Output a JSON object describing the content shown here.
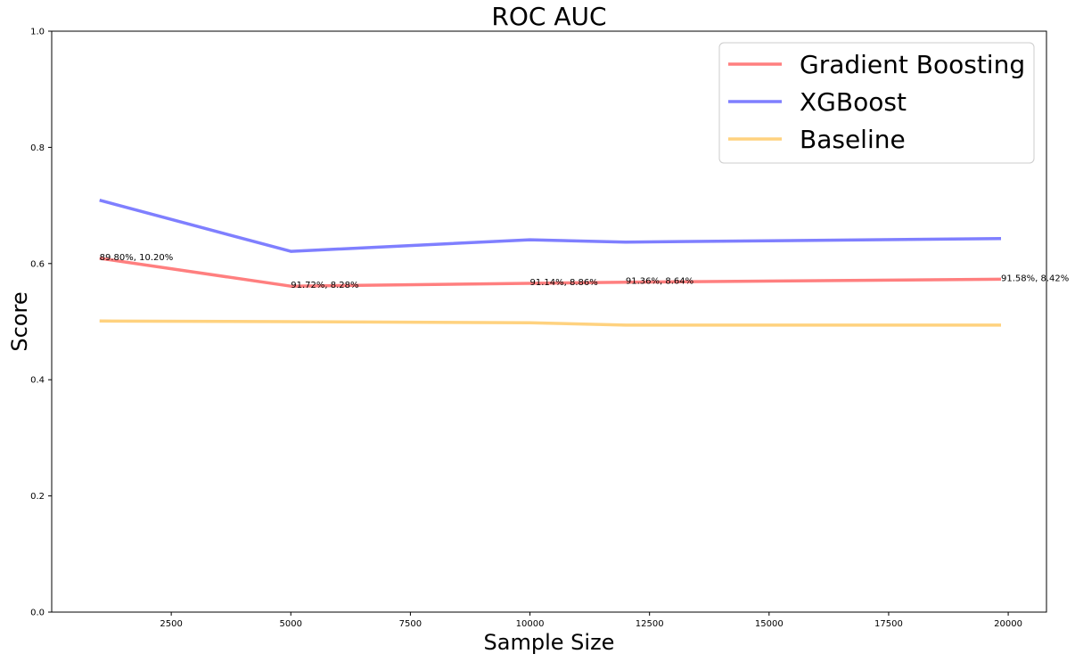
{
  "chart_data": {
    "type": "line",
    "title": "ROC AUC",
    "xlabel": "Sample Size",
    "ylabel": "Score",
    "xlim": [
      0,
      20800
    ],
    "ylim": [
      0.0,
      1.0
    ],
    "x_ticks": [
      2500,
      5000,
      7500,
      10000,
      12500,
      15000,
      17500,
      20000
    ],
    "x_tick_labels": [
      "2500",
      "5000",
      "7500",
      "10000",
      "12500",
      "15000",
      "17500",
      "20000"
    ],
    "y_ticks": [
      0.0,
      0.2,
      0.4,
      0.6,
      0.8,
      1.0
    ],
    "y_tick_labels": [
      "0.0",
      "0.2",
      "0.4",
      "0.6",
      "0.8",
      "1.0"
    ],
    "grid": false,
    "legend_position": "top-right",
    "x": [
      1000,
      5000,
      10000,
      12000,
      19850
    ],
    "series": [
      {
        "name": "Gradient Boosting",
        "color": "#ff7f7f",
        "values": [
          0.609,
          0.561,
          0.566,
          0.568,
          0.573
        ]
      },
      {
        "name": "XGBoost",
        "color": "#7f7fff",
        "values": [
          0.709,
          0.621,
          0.641,
          0.637,
          0.643
        ]
      },
      {
        "name": "Baseline",
        "color": "#ffd27f",
        "values": [
          0.501,
          0.5,
          0.498,
          0.494,
          0.494
        ]
      }
    ],
    "annotations": [
      {
        "x": 1000,
        "y": 0.609,
        "text": "89.80%, 10.20%"
      },
      {
        "x": 5000,
        "y": 0.561,
        "text": "91.72%, 8.28%"
      },
      {
        "x": 10000,
        "y": 0.566,
        "text": "91.14%, 8.86%"
      },
      {
        "x": 12000,
        "y": 0.568,
        "text": "91.36%, 8.64%"
      },
      {
        "x": 19850,
        "y": 0.573,
        "text": "91.58%, 8.42%"
      }
    ]
  }
}
